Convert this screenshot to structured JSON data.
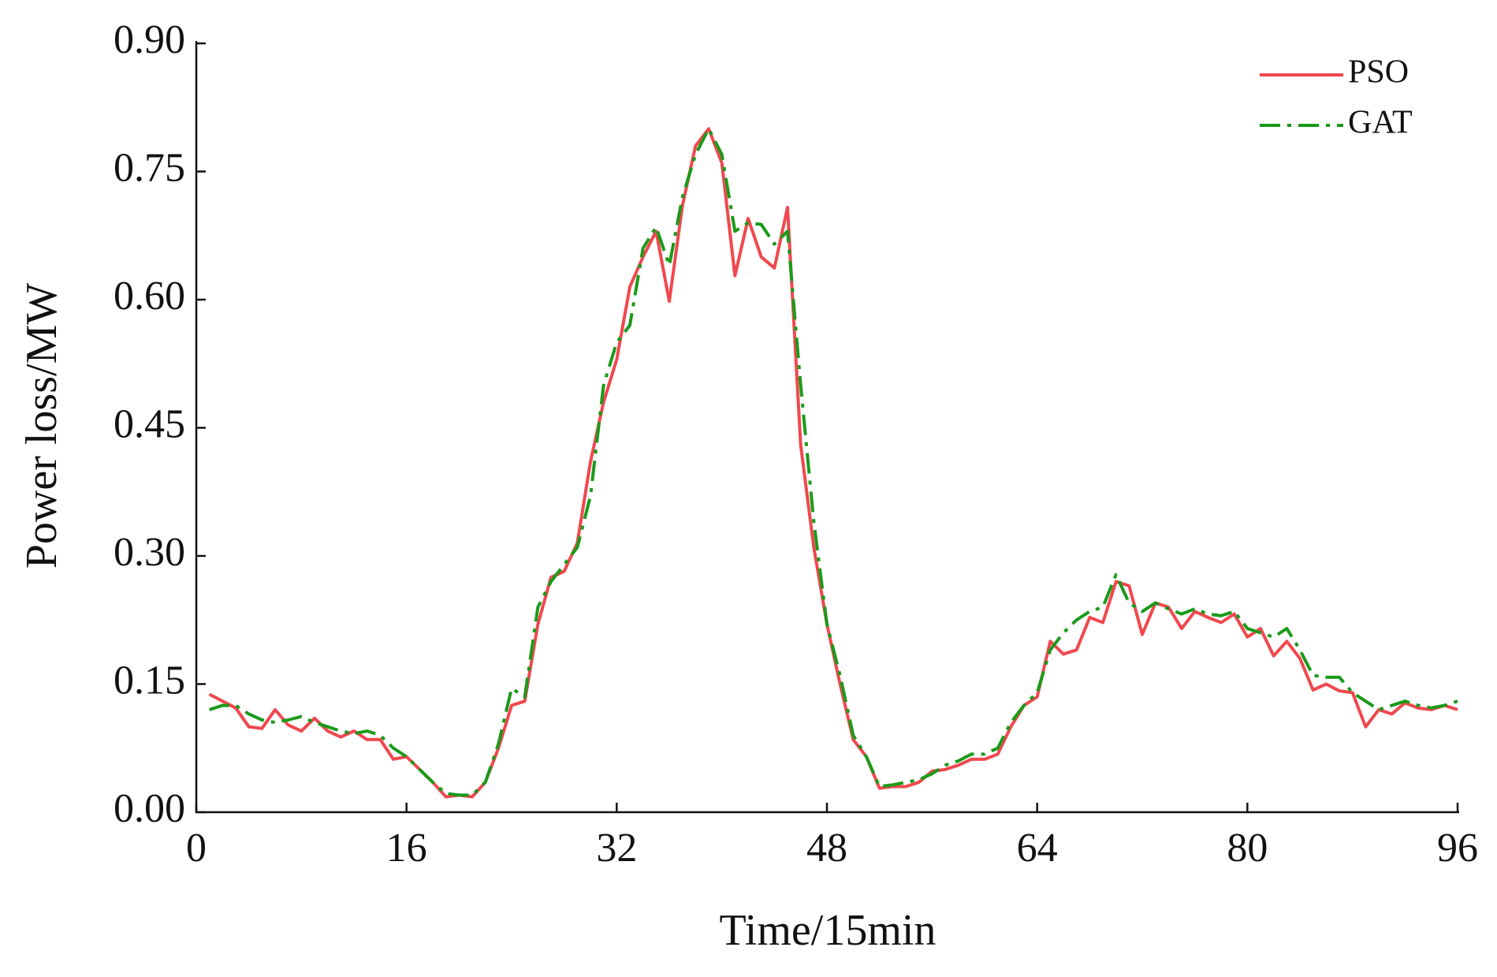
{
  "chart_data": {
    "type": "line",
    "x_label": "Time/15min",
    "y_label": "Power loss/MW",
    "x": [
      1,
      2,
      3,
      4,
      5,
      6,
      7,
      8,
      9,
      10,
      11,
      12,
      13,
      14,
      15,
      16,
      17,
      18,
      19,
      20,
      21,
      22,
      23,
      24,
      25,
      26,
      27,
      28,
      29,
      30,
      31,
      32,
      33,
      34,
      35,
      36,
      37,
      38,
      39,
      40,
      41,
      42,
      43,
      44,
      45,
      46,
      47,
      48,
      49,
      50,
      51,
      52,
      53,
      54,
      55,
      56,
      57,
      58,
      59,
      60,
      61,
      62,
      63,
      64,
      65,
      66,
      67,
      68,
      69,
      70,
      71,
      72,
      73,
      74,
      75,
      76,
      77,
      78,
      79,
      80,
      81,
      82,
      83,
      84,
      85,
      86,
      87,
      88,
      89,
      90,
      91,
      92,
      93,
      94,
      95,
      96
    ],
    "series": [
      {
        "name": "PSO",
        "color": "#f0484e",
        "dash": "solid",
        "values": [
          0.138,
          0.13,
          0.122,
          0.1,
          0.098,
          0.12,
          0.102,
          0.095,
          0.11,
          0.095,
          0.088,
          0.095,
          0.085,
          0.085,
          0.062,
          0.065,
          0.05,
          0.035,
          0.018,
          0.02,
          0.018,
          0.035,
          0.075,
          0.125,
          0.13,
          0.22,
          0.275,
          0.282,
          0.315,
          0.41,
          0.48,
          0.53,
          0.615,
          0.65,
          0.68,
          0.598,
          0.71,
          0.78,
          0.8,
          0.76,
          0.628,
          0.695,
          0.65,
          0.637,
          0.708,
          0.43,
          0.31,
          0.22,
          0.15,
          0.085,
          0.065,
          0.028,
          0.03,
          0.03,
          0.035,
          0.048,
          0.05,
          0.055,
          0.062,
          0.062,
          0.068,
          0.1,
          0.125,
          0.135,
          0.2,
          0.185,
          0.19,
          0.228,
          0.222,
          0.27,
          0.265,
          0.208,
          0.245,
          0.24,
          0.215,
          0.235,
          0.228,
          0.222,
          0.232,
          0.205,
          0.215,
          0.183,
          0.2,
          0.18,
          0.143,
          0.15,
          0.142,
          0.14,
          0.1,
          0.12,
          0.115,
          0.128,
          0.122,
          0.12,
          0.125,
          0.12
        ]
      },
      {
        "name": "GAT",
        "color": "#1a9a1a",
        "dash": "dashdot",
        "values": [
          0.12,
          0.125,
          0.125,
          0.115,
          0.108,
          0.105,
          0.108,
          0.112,
          0.105,
          0.1,
          0.095,
          0.092,
          0.095,
          0.09,
          0.075,
          0.065,
          0.05,
          0.035,
          0.022,
          0.02,
          0.02,
          0.035,
          0.08,
          0.145,
          0.135,
          0.24,
          0.27,
          0.29,
          0.31,
          0.37,
          0.5,
          0.55,
          0.57,
          0.66,
          0.685,
          0.64,
          0.72,
          0.77,
          0.8,
          0.77,
          0.68,
          0.69,
          0.688,
          0.665,
          0.68,
          0.5,
          0.34,
          0.22,
          0.16,
          0.09,
          0.065,
          0.03,
          0.032,
          0.035,
          0.038,
          0.045,
          0.055,
          0.06,
          0.068,
          0.068,
          0.075,
          0.105,
          0.125,
          0.14,
          0.19,
          0.21,
          0.225,
          0.235,
          0.24,
          0.278,
          0.245,
          0.235,
          0.245,
          0.238,
          0.232,
          0.238,
          0.232,
          0.23,
          0.235,
          0.215,
          0.21,
          0.205,
          0.215,
          0.19,
          0.16,
          0.158,
          0.158,
          0.14,
          0.13,
          0.12,
          0.125,
          0.13,
          0.125,
          0.122,
          0.125,
          0.13
        ]
      }
    ],
    "xlim": [
      0,
      96
    ],
    "xticks": [
      0,
      16,
      32,
      48,
      64,
      80,
      96
    ],
    "ylim": [
      0,
      0.9
    ],
    "yticks": [
      {
        "value": 0,
        "label": "0.00"
      },
      {
        "value": 0.15,
        "label": "0.15"
      },
      {
        "value": 0.3,
        "label": "0.30"
      },
      {
        "value": 0.45,
        "label": "0.45"
      },
      {
        "value": 0.6,
        "label": "0.60"
      },
      {
        "value": 0.75,
        "label": "0.75"
      },
      {
        "value": 0.9,
        "label": "0.90"
      }
    ],
    "legend": "upper right",
    "grid": false
  }
}
